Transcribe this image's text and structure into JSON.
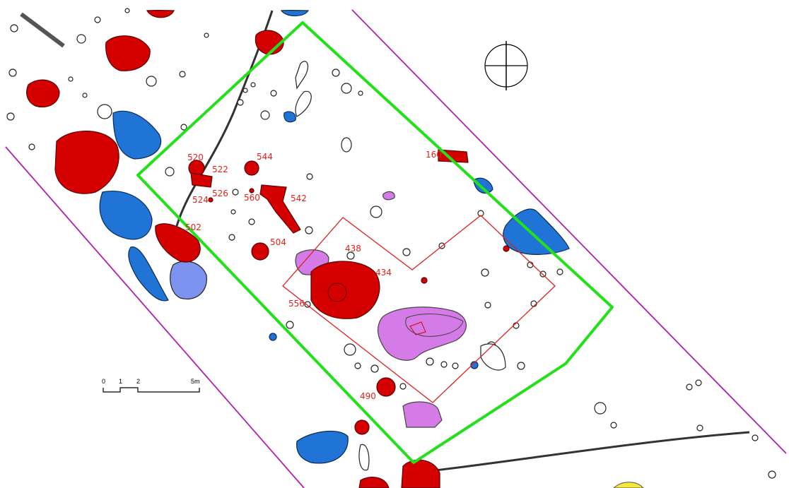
{
  "features": [
    {
      "label": "520"
    },
    {
      "label": "522"
    },
    {
      "label": "524"
    },
    {
      "label": "526"
    },
    {
      "label": "544"
    },
    {
      "label": "560"
    },
    {
      "label": "542"
    },
    {
      "label": "502"
    },
    {
      "label": "504"
    },
    {
      "label": "438"
    },
    {
      "label": "434"
    },
    {
      "label": "556"
    },
    {
      "label": "490"
    },
    {
      "label": "160"
    }
  ],
  "scale_bar": {
    "ticks": [
      "0",
      "1",
      "2",
      "5m"
    ]
  }
}
